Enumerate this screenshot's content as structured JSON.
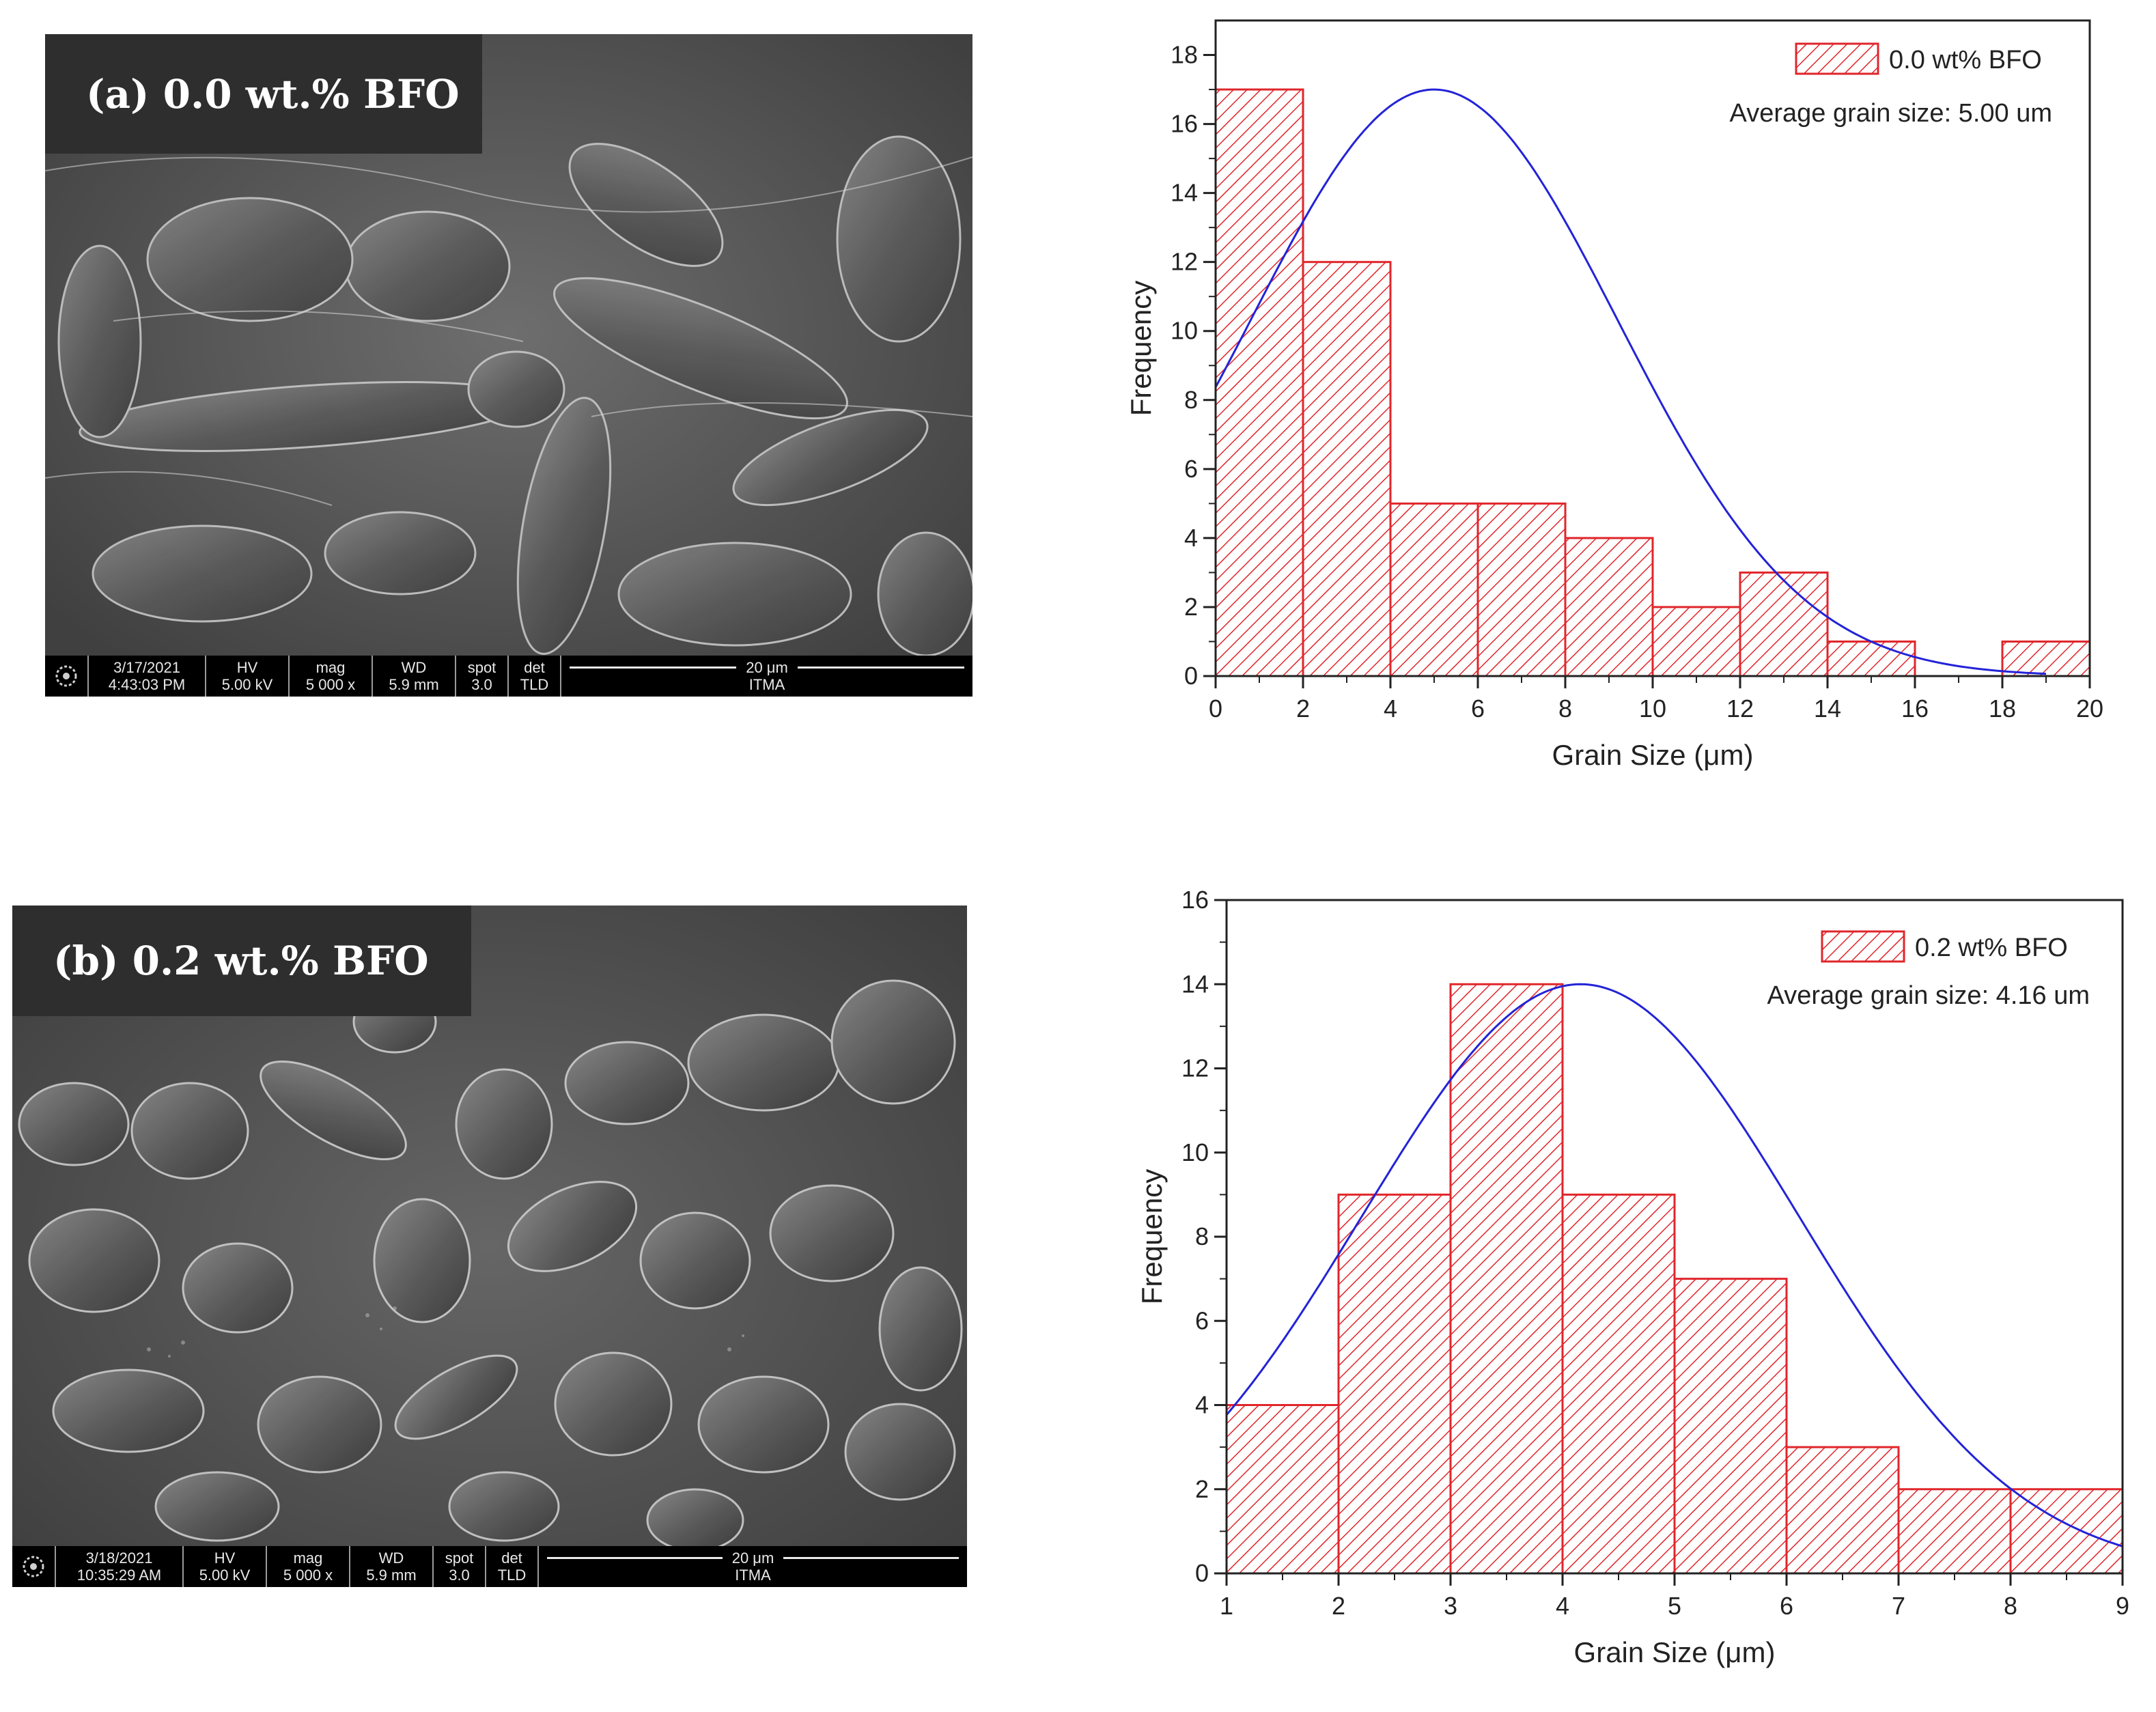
{
  "panels": [
    {
      "id": "a",
      "image_label": "(a) 0.0 wt.% BFO",
      "sem_bar": {
        "date": "3/17/2021",
        "time": "4:43:03 PM",
        "hv_label": "HV",
        "hv_value": "5.00 kV",
        "mag_label": "mag",
        "mag_value": "5 000 x",
        "wd_label": "WD",
        "wd_value": "5.9 mm",
        "spot_label": "spot",
        "spot_value": "3.0",
        "det_label": "det",
        "det_value": "TLD",
        "scale_label": "20 μm",
        "institution": "ITMA"
      }
    },
    {
      "id": "b",
      "image_label": "(b) 0.2 wt.% BFO",
      "sem_bar": {
        "date": "3/18/2021",
        "time": "10:35:29 AM",
        "hv_label": "HV",
        "hv_value": "5.00 kV",
        "mag_label": "mag",
        "mag_value": "5 000 x",
        "wd_label": "WD",
        "wd_value": "5.9 mm",
        "spot_label": "spot",
        "spot_value": "3.0",
        "det_label": "det",
        "det_value": "TLD",
        "scale_label": "20 μm",
        "institution": "ITMA"
      }
    }
  ],
  "chart_data": [
    {
      "type": "bar",
      "subtype": "histogram-with-normal-fit",
      "xlabel": "Grain Size (μm)",
      "ylabel": "Frequency",
      "xlim": [
        0,
        20
      ],
      "ylim": [
        0,
        19
      ],
      "xticks": [
        0,
        2,
        4,
        6,
        8,
        10,
        12,
        14,
        16,
        18,
        20
      ],
      "yticks": [
        0,
        2,
        4,
        6,
        8,
        10,
        12,
        14,
        16,
        18
      ],
      "bin_edges": [
        0,
        2,
        4,
        6,
        8,
        10,
        12,
        14,
        16,
        18,
        20
      ],
      "values": [
        17,
        12,
        5,
        5,
        4,
        2,
        3,
        1,
        0,
        1
      ],
      "legend": {
        "label": "0.0 wt% BFO",
        "placement": "top-right"
      },
      "annotation": "Average grain size: 5.00 um",
      "fit": {
        "type": "gaussian",
        "mean": 5.0,
        "peak": 17,
        "sigma": 4.2,
        "x_range": [
          0,
          19
        ]
      },
      "bar_color": "#e0262b",
      "fit_color": "#2323d8"
    },
    {
      "type": "bar",
      "subtype": "histogram-with-normal-fit",
      "xlabel": "Grain Size (μm)",
      "ylabel": "Frequency",
      "xlim": [
        1,
        9
      ],
      "ylim": [
        0,
        16
      ],
      "xticks": [
        1,
        2,
        3,
        4,
        5,
        6,
        7,
        8,
        9
      ],
      "yticks": [
        0,
        2,
        4,
        6,
        8,
        10,
        12,
        14,
        16
      ],
      "bin_edges": [
        1,
        2,
        3,
        4,
        5,
        6,
        7,
        8,
        9
      ],
      "values": [
        4,
        9,
        14,
        9,
        7,
        3,
        2,
        2
      ],
      "legend": {
        "label": "0.2 wt% BFO",
        "placement": "top-right"
      },
      "annotation": "Average grain size: 4.16 um",
      "fit": {
        "type": "gaussian",
        "mean": 4.16,
        "peak": 14,
        "sigma": 1.95,
        "x_range": [
          1,
          9
        ]
      },
      "bar_color": "#e0262b",
      "fit_color": "#2323d8"
    }
  ]
}
